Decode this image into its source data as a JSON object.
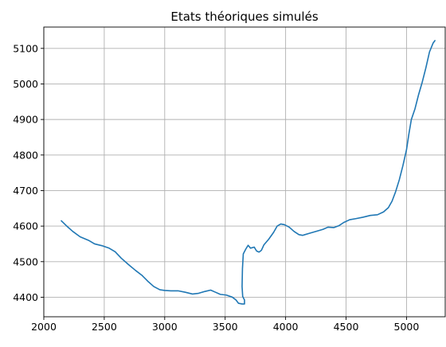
{
  "chart_data": {
    "type": "line",
    "title": "Etats théoriques simulés",
    "xlabel": "",
    "ylabel": "",
    "xlim": [
      2000,
      5320
    ],
    "ylim": [
      4345,
      5160
    ],
    "x_ticks": [
      2000,
      2500,
      3000,
      3500,
      4000,
      4500,
      5000
    ],
    "y_ticks": [
      4400,
      4500,
      4600,
      4700,
      4800,
      4900,
      5000,
      5100
    ],
    "grid": true,
    "series_color": "#1f77b4",
    "series": [
      {
        "points": [
          [
            2145,
            4615
          ],
          [
            2190,
            4600
          ],
          [
            2240,
            4585
          ],
          [
            2300,
            4570
          ],
          [
            2370,
            4560
          ],
          [
            2420,
            4550
          ],
          [
            2480,
            4545
          ],
          [
            2540,
            4538
          ],
          [
            2590,
            4528
          ],
          [
            2640,
            4510
          ],
          [
            2700,
            4492
          ],
          [
            2760,
            4475
          ],
          [
            2810,
            4462
          ],
          [
            2860,
            4445
          ],
          [
            2910,
            4430
          ],
          [
            2960,
            4421
          ],
          [
            3000,
            4419
          ],
          [
            3050,
            4418
          ],
          [
            3110,
            4418
          ],
          [
            3170,
            4414
          ],
          [
            3230,
            4409
          ],
          [
            3280,
            4411
          ],
          [
            3330,
            4416
          ],
          [
            3380,
            4420
          ],
          [
            3420,
            4414
          ],
          [
            3460,
            4408
          ],
          [
            3510,
            4406
          ],
          [
            3560,
            4400
          ],
          [
            3590,
            4392
          ],
          [
            3610,
            4383
          ],
          [
            3640,
            4381
          ],
          [
            3660,
            4381
          ],
          [
            3660,
            4392
          ],
          [
            3645,
            4402
          ],
          [
            3640,
            4430
          ],
          [
            3643,
            4480
          ],
          [
            3650,
            4522
          ],
          [
            3670,
            4535
          ],
          [
            3690,
            4546
          ],
          [
            3710,
            4538
          ],
          [
            3740,
            4541
          ],
          [
            3760,
            4530
          ],
          [
            3780,
            4527
          ],
          [
            3800,
            4532
          ],
          [
            3820,
            4547
          ],
          [
            3860,
            4563
          ],
          [
            3900,
            4582
          ],
          [
            3930,
            4600
          ],
          [
            3960,
            4606
          ],
          [
            3990,
            4604
          ],
          [
            4030,
            4597
          ],
          [
            4070,
            4585
          ],
          [
            4110,
            4576
          ],
          [
            4140,
            4574
          ],
          [
            4200,
            4580
          ],
          [
            4260,
            4586
          ],
          [
            4310,
            4591
          ],
          [
            4350,
            4597
          ],
          [
            4400,
            4596
          ],
          [
            4440,
            4601
          ],
          [
            4480,
            4610
          ],
          [
            4530,
            4618
          ],
          [
            4580,
            4621
          ],
          [
            4640,
            4625
          ],
          [
            4700,
            4630
          ],
          [
            4760,
            4632
          ],
          [
            4810,
            4640
          ],
          [
            4850,
            4652
          ],
          [
            4880,
            4670
          ],
          [
            4910,
            4697
          ],
          [
            4940,
            4730
          ],
          [
            4970,
            4770
          ],
          [
            5000,
            4815
          ],
          [
            5020,
            4860
          ],
          [
            5040,
            4900
          ],
          [
            5070,
            4930
          ],
          [
            5100,
            4970
          ],
          [
            5130,
            5005
          ],
          [
            5160,
            5045
          ],
          [
            5190,
            5090
          ],
          [
            5220,
            5115
          ],
          [
            5235,
            5122
          ]
        ]
      }
    ]
  }
}
